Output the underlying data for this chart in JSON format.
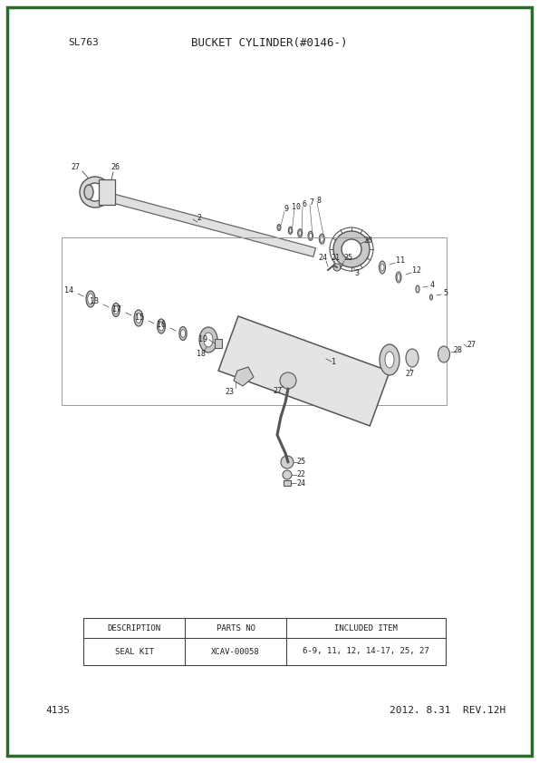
{
  "bg_color": "#ffffff",
  "border_color": "#2d6a2d",
  "page_title_left": "SL763",
  "page_title_center": "BUCKET CYLINDER(#0146-)",
  "page_number": "4135",
  "page_date": "2012. 8.31  REV.12H",
  "table_headers": [
    "DESCRIPTION",
    "PARTS NO",
    "INCLUDED ITEM"
  ],
  "table_row": [
    "SEAL KIT",
    "XCAV-00058",
    "6-9, 11, 12, 14-17, 25, 27"
  ],
  "text_color": "#333333",
  "dark_color": "#222222",
  "line_color": "#444444",
  "light_gray": "#aaaaaa",
  "mid_gray": "#888888"
}
